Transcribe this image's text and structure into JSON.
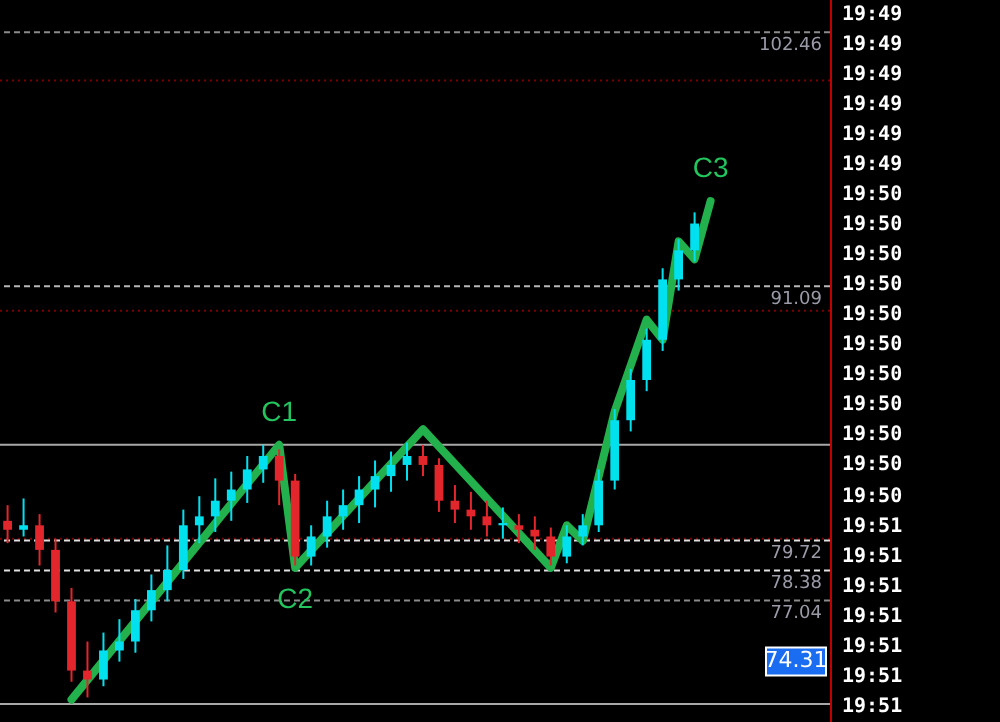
{
  "chart_data": [
    {
      "type": "candlestick",
      "categories": [
        null,
        null,
        null,
        null,
        null,
        null,
        null,
        null,
        null,
        null,
        null,
        null,
        null,
        null,
        null,
        null,
        null,
        null,
        null,
        null,
        null,
        null,
        null,
        null,
        null,
        null,
        null,
        null,
        null,
        null,
        null,
        null,
        null,
        null,
        null,
        null,
        null,
        null,
        null,
        null,
        null,
        null,
        null,
        null,
        null,
        null,
        null,
        null,
        null,
        null,
        null,
        null
      ],
      "ohlc": [
        [
          80.6,
          81.3,
          79.6,
          80.2
        ],
        [
          80.2,
          81.6,
          79.9,
          80.4
        ],
        [
          80.4,
          80.9,
          78.6,
          79.3
        ],
        [
          79.3,
          79.8,
          76.5,
          77.0
        ],
        [
          77.0,
          77.6,
          73.4,
          73.9
        ],
        [
          73.9,
          75.2,
          72.7,
          73.5
        ],
        [
          73.5,
          75.6,
          73.2,
          74.8
        ],
        [
          74.8,
          76.2,
          74.3,
          75.2
        ],
        [
          75.2,
          77.1,
          74.7,
          76.6
        ],
        [
          76.6,
          78.2,
          76.1,
          77.5
        ],
        [
          77.5,
          79.5,
          77.0,
          78.4
        ],
        [
          78.4,
          81.1,
          78.0,
          80.4
        ],
        [
          80.4,
          81.7,
          79.6,
          80.8
        ],
        [
          80.8,
          82.5,
          80.1,
          81.5
        ],
        [
          81.5,
          82.8,
          80.6,
          82.0
        ],
        [
          82.0,
          83.5,
          81.4,
          82.9
        ],
        [
          82.9,
          84.0,
          82.3,
          83.5
        ],
        [
          83.5,
          83.8,
          81.3,
          82.4
        ],
        [
          82.4,
          82.7,
          78.6,
          79.0
        ],
        [
          79.0,
          80.4,
          78.6,
          79.9
        ],
        [
          79.9,
          81.5,
          79.4,
          80.8
        ],
        [
          80.8,
          82.0,
          80.2,
          81.3
        ],
        [
          81.3,
          82.6,
          80.5,
          82.0
        ],
        [
          82.0,
          83.3,
          81.2,
          82.6
        ],
        [
          82.6,
          83.7,
          81.9,
          83.1
        ],
        [
          83.1,
          84.1,
          82.4,
          83.5
        ],
        [
          83.5,
          84.0,
          82.6,
          83.1
        ],
        [
          83.1,
          83.4,
          81.0,
          81.5
        ],
        [
          81.5,
          82.2,
          80.5,
          81.1
        ],
        [
          81.1,
          81.9,
          80.2,
          80.8
        ],
        [
          80.8,
          81.5,
          79.9,
          80.4
        ],
        [
          80.4,
          81.2,
          79.8,
          80.5
        ],
        [
          80.4,
          80.9,
          79.6,
          80.2
        ],
        [
          80.2,
          80.8,
          79.3,
          79.9
        ],
        [
          79.9,
          80.3,
          78.6,
          79.0
        ],
        [
          79.0,
          80.4,
          78.7,
          79.9
        ],
        [
          79.9,
          80.9,
          79.5,
          80.4
        ],
        [
          80.4,
          82.9,
          80.1,
          82.4
        ],
        [
          82.4,
          85.6,
          82.0,
          85.1
        ],
        [
          85.1,
          87.4,
          84.6,
          86.9
        ],
        [
          86.9,
          89.2,
          86.4,
          88.7
        ],
        [
          88.7,
          91.9,
          88.2,
          91.4
        ],
        [
          91.4,
          93.2,
          90.9,
          92.7
        ],
        [
          92.7,
          94.4,
          92.2,
          93.9
        ],
        null,
        null,
        null,
        null,
        null,
        null,
        null,
        null
      ],
      "ylim": [
        71.6,
        103.9
      ],
      "series": [
        {
          "type": "line",
          "color": "#22b14c",
          "values": [
            null,
            null,
            null,
            null,
            72.6,
            null,
            null,
            null,
            null,
            null,
            null,
            null,
            null,
            null,
            null,
            null,
            null,
            84.0,
            78.5,
            null,
            null,
            null,
            null,
            null,
            null,
            null,
            84.7,
            null,
            null,
            null,
            null,
            null,
            null,
            null,
            78.5,
            80.4,
            79.7,
            null,
            85.5,
            null,
            89.6,
            88.7,
            93.1,
            92.3,
            94.9,
            null,
            null,
            null,
            null,
            null,
            null,
            null
          ]
        }
      ],
      "ref_lines": [
        {
          "axis": "y",
          "value": 102.46,
          "label": "102.46",
          "color": "#8a8a8a",
          "line_style": "dashed"
        },
        {
          "axis": "y",
          "value": 100.3,
          "color": "#7a0000",
          "line_style": "dotted"
        },
        {
          "axis": "y",
          "value": 91.09,
          "label": "91.09",
          "color": "#b8b8b8",
          "line_style": "dashed"
        },
        {
          "axis": "y",
          "value": 90.0,
          "color": "#7a0000",
          "line_style": "dotted"
        },
        {
          "axis": "y",
          "value": 84.0,
          "color": "#a8a8a8",
          "line_style": "solid"
        },
        {
          "axis": "y",
          "value": 79.8,
          "color": "#7a0000",
          "line_style": "dotted"
        },
        {
          "axis": "y",
          "value": 79.72,
          "label": "79.72",
          "color": "#e0e0e0",
          "line_style": "dashed"
        },
        {
          "axis": "y",
          "value": 78.38,
          "label": "78.38",
          "color": "#e0e0e0",
          "line_style": "dashed"
        },
        {
          "axis": "y",
          "value": 77.04,
          "label": "77.04",
          "color": "#8a8a8a",
          "line_style": "dashed"
        },
        {
          "axis": "y",
          "value": 72.4,
          "color": "#a8a8a8",
          "line_style": "solid"
        }
      ],
      "annotations": [
        {
          "text": "C1",
          "y": 84.0
        },
        {
          "text": "C2",
          "y": 78.5
        },
        {
          "text": "C3",
          "y": 94.9
        },
        {
          "text": "74.31",
          "y": 74.31
        }
      ]
    },
    {
      "type": "other",
      "annotations": [
        "19:49",
        "19:49",
        "19:49",
        "19:49",
        "19:49",
        "19:49",
        "19:50",
        "19:50",
        "19:50",
        "19:50",
        "19:50",
        "19:50",
        "19:50",
        "19:50",
        "19:50",
        "19:50",
        "19:50",
        "19:51",
        "19:51",
        "19:51",
        "19:51",
        "19:51",
        "19:51",
        "19:51"
      ]
    }
  ]
}
